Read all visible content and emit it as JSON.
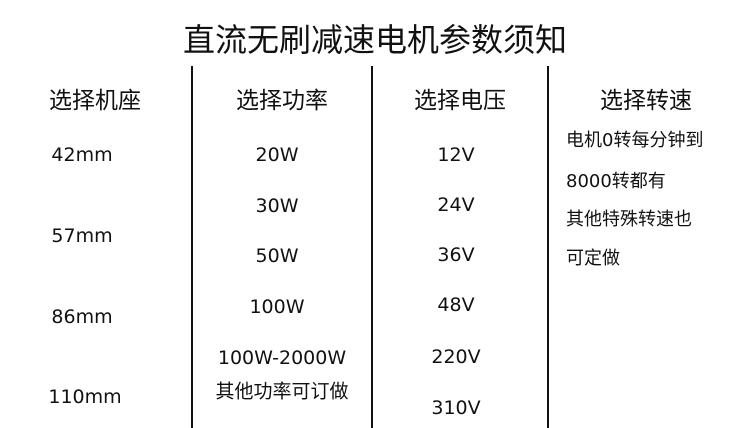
{
  "title": "直流无刷减速电机参数须知",
  "columns": [
    {
      "header": "选择机座",
      "items": [
        "42mm",
        "57mm",
        "86mm",
        "110mm"
      ]
    },
    {
      "header": "选择功率",
      "items": [
        "20W",
        "30W",
        "50W",
        "100W",
        "100W-2000W",
        "其他功率可订做"
      ]
    },
    {
      "header": "选择电压",
      "items": [
        "12V",
        "24V",
        "36V",
        "48V",
        "220V",
        "310V"
      ]
    },
    {
      "header": "选择转速",
      "items": [
        "电机0转每分钟到",
        "8000转都有",
        "其他特殊转速也",
        "可定做"
      ]
    }
  ]
}
